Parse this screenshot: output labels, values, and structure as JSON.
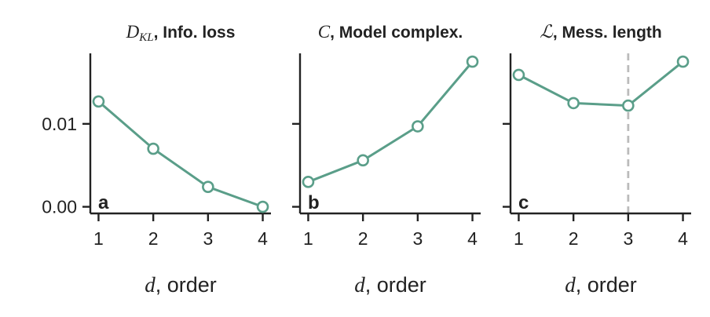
{
  "colors": {
    "series": "#5a9e89",
    "marker_fill": "#ffffff",
    "axis": "#222222",
    "highlight_line": "#bbbbbb"
  },
  "x_axis_label": {
    "var": "d",
    "text": ", order"
  },
  "y_tick_labels": [
    "0.00",
    "0.01"
  ],
  "chart_data": [
    {
      "type": "line",
      "panel": "a",
      "title": {
        "symbol": "D",
        "subscript": "KL",
        "text": ", Info. loss"
      },
      "x": [
        1,
        2,
        3,
        4
      ],
      "series": [
        {
          "values": [
            0.0127,
            0.007,
            0.0024,
            0.0
          ]
        }
      ],
      "xlim": [
        0.85,
        4.15
      ],
      "ylim": [
        -0.0008,
        0.0185
      ],
      "yticks": [
        0.0,
        0.01
      ],
      "xticks": [
        1,
        2,
        3,
        4
      ],
      "xlabel": "d, order",
      "grid": false
    },
    {
      "type": "line",
      "panel": "b",
      "title": {
        "symbol": "C",
        "subscript": "",
        "text": ", Model complex."
      },
      "x": [
        1,
        2,
        3,
        4
      ],
      "series": [
        {
          "values": [
            0.003,
            0.0056,
            0.0097,
            0.0175
          ]
        }
      ],
      "xlim": [
        0.85,
        4.15
      ],
      "ylim": [
        -0.0008,
        0.0185
      ],
      "yticks": [
        0.0,
        0.01
      ],
      "xticks": [
        1,
        2,
        3,
        4
      ],
      "xlabel": "d, order",
      "grid": false
    },
    {
      "type": "line",
      "panel": "c",
      "title": {
        "symbol": "ℒ",
        "subscript": "",
        "text": ", Mess. length"
      },
      "x": [
        1,
        2,
        3,
        4
      ],
      "series": [
        {
          "values": [
            0.0159,
            0.0125,
            0.0122,
            0.0175
          ]
        }
      ],
      "xlim": [
        0.85,
        4.15
      ],
      "ylim": [
        -0.0008,
        0.0185
      ],
      "yticks": [
        0.0,
        0.01
      ],
      "xticks": [
        1,
        2,
        3,
        4
      ],
      "xlabel": "d, order",
      "grid": false,
      "vertical_line_at": 3
    }
  ]
}
